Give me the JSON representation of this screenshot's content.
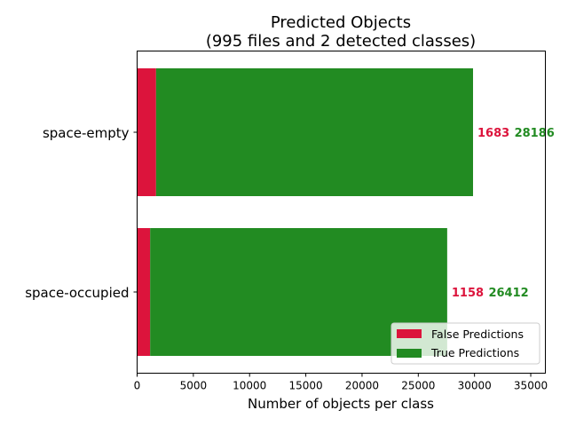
{
  "chart_data": {
    "type": "bar",
    "orientation": "horizontal",
    "stacked": true,
    "title": "Predicted Objects",
    "subtitle": "(995 files and 2 detected classes)",
    "xlabel": "Number of objects per class",
    "ylabel": "",
    "xlim": [
      0,
      36300
    ],
    "xticks": [
      0,
      5000,
      10000,
      15000,
      20000,
      25000,
      30000,
      35000
    ],
    "categories": [
      "space-empty",
      "space-occupied"
    ],
    "series": [
      {
        "name": "False Predictions",
        "color": "#dc143c",
        "values": [
          1683,
          1158
        ]
      },
      {
        "name": "True Predictions",
        "color": "#228b22",
        "values": [
          28186,
          26412
        ]
      }
    ],
    "legend_position": "lower-right",
    "grid": false
  }
}
